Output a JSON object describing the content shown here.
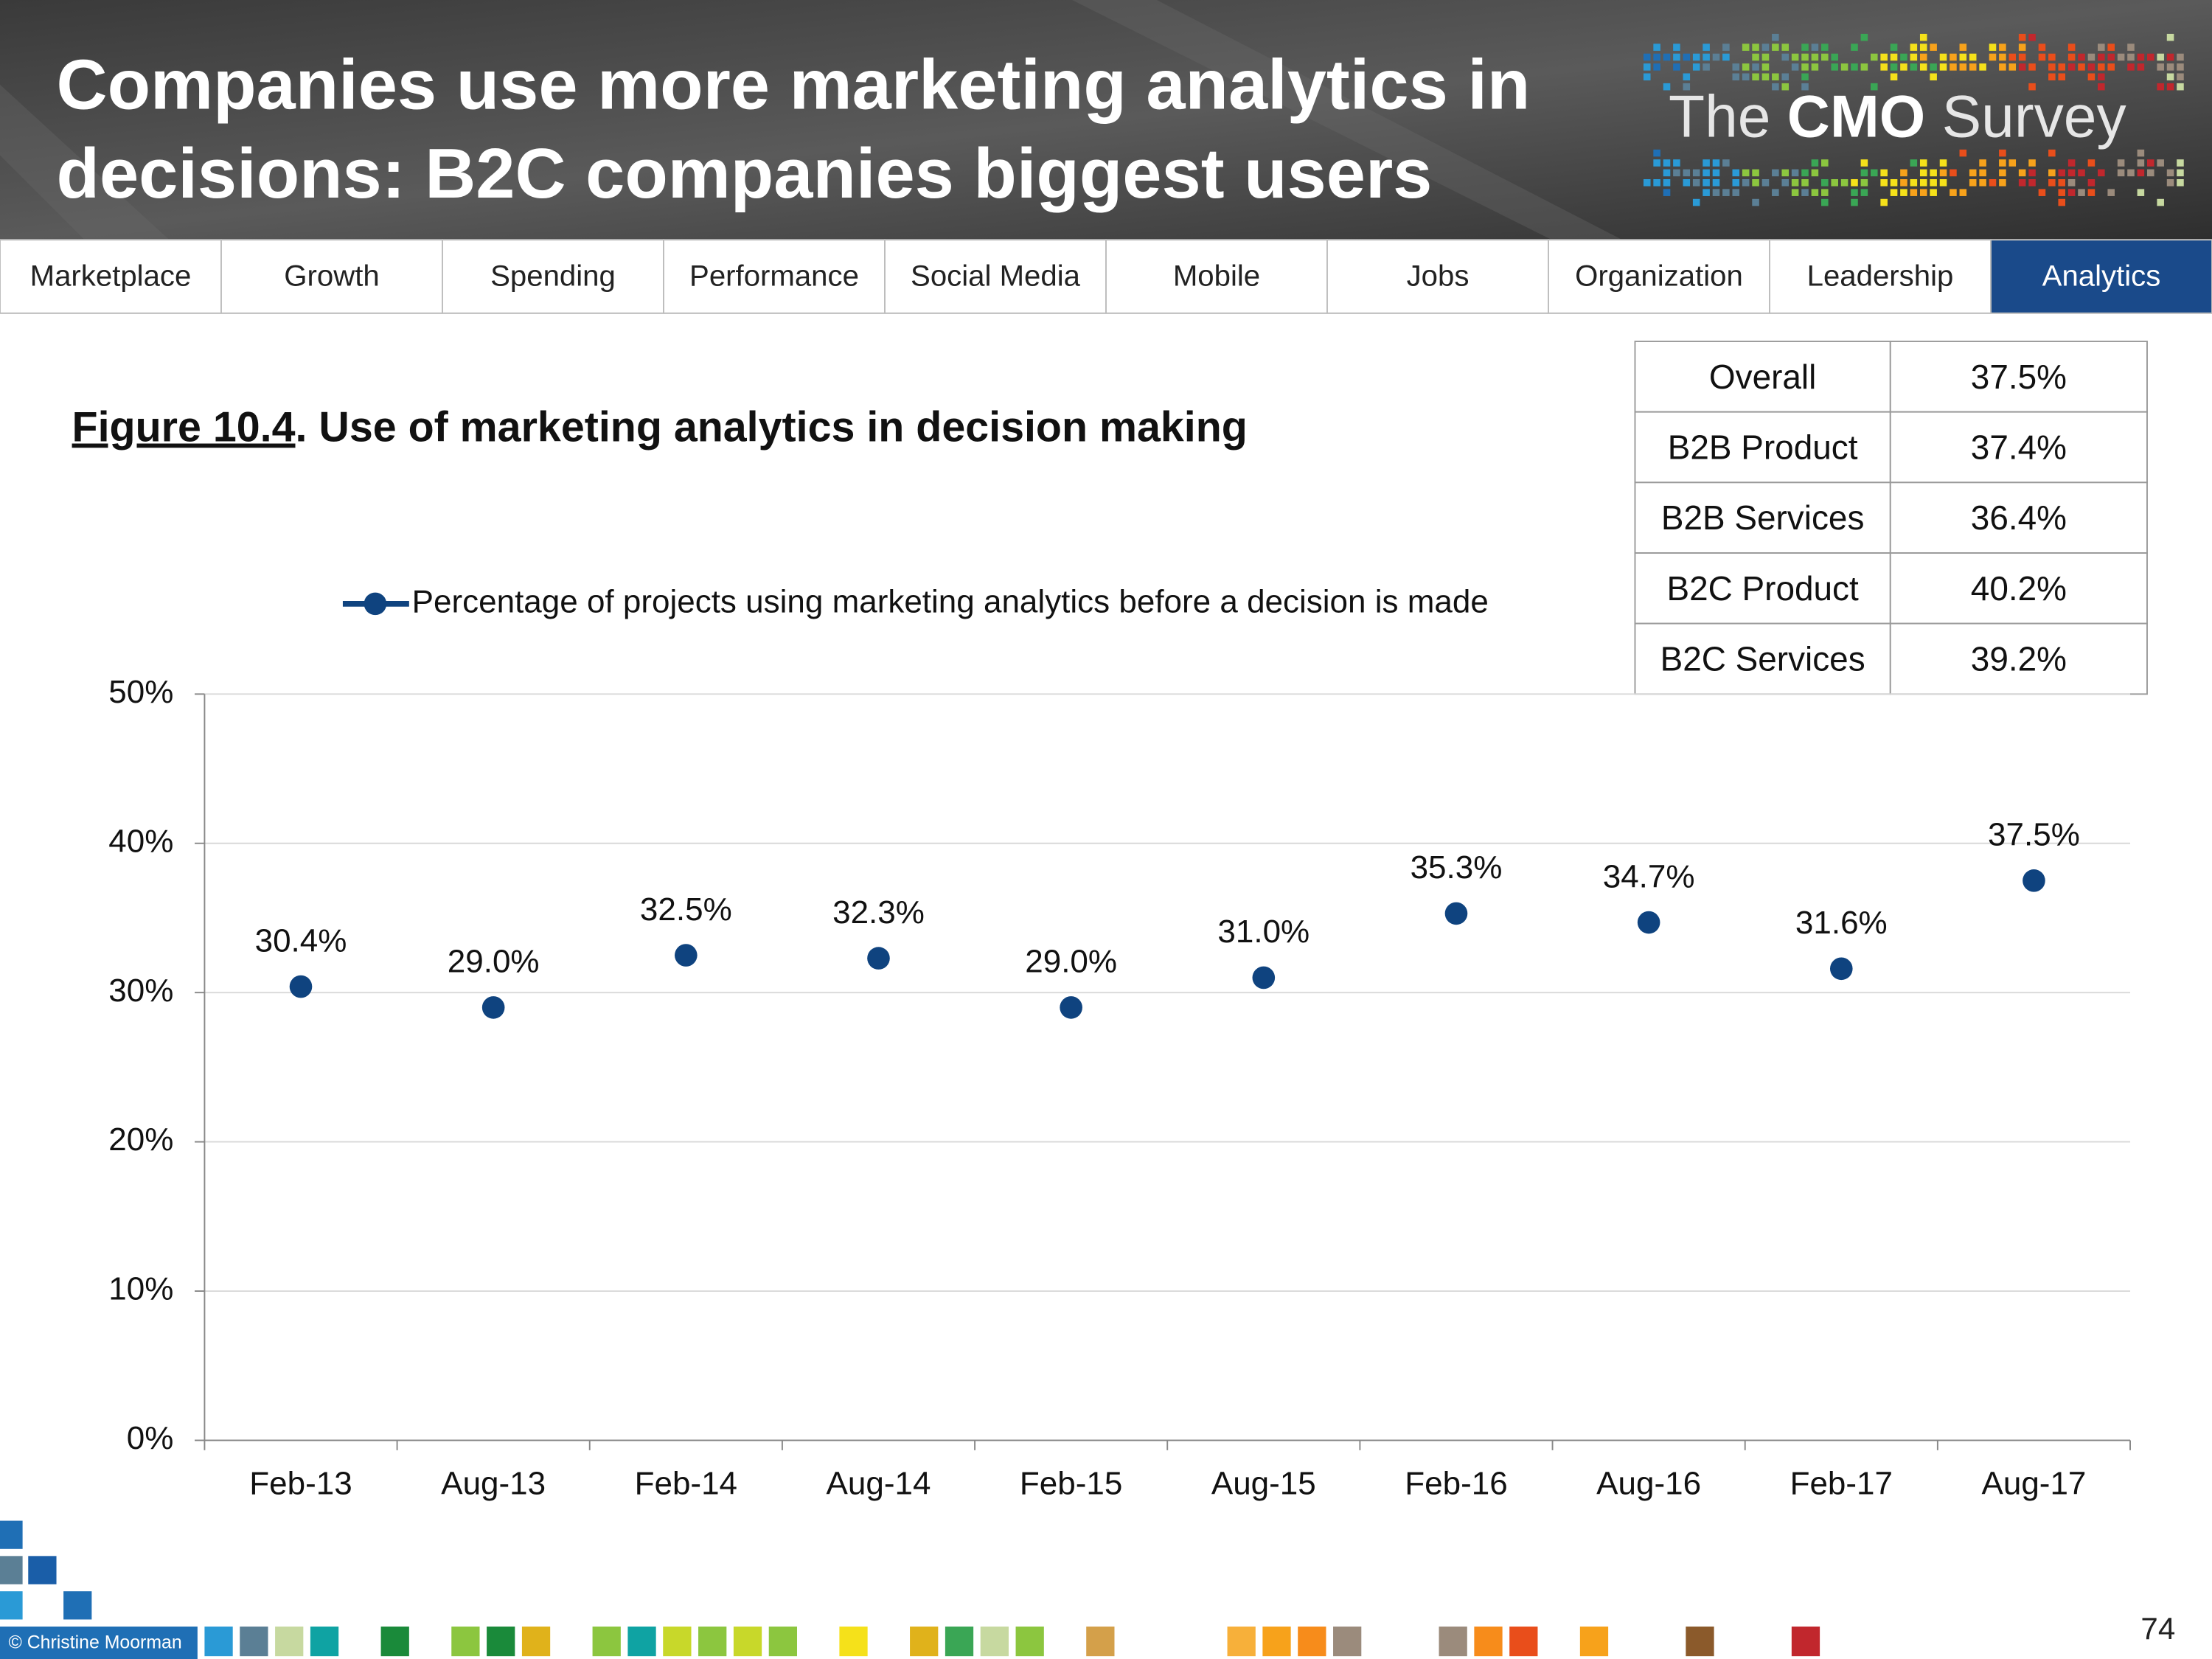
{
  "header": {
    "title_lines": [
      "Companies use more marketing analytics in",
      "decisions: B2C companies biggest users"
    ],
    "logo": {
      "prefix": "The",
      "brand": "CMO",
      "suffix": "Survey"
    }
  },
  "nav": {
    "tabs": [
      "Marketplace",
      "Growth",
      "Spending",
      "Performance",
      "Social Media",
      "Mobile",
      "Jobs",
      "Organization",
      "Leadership",
      "Analytics"
    ],
    "active": 9
  },
  "table": {
    "rows": [
      [
        "Overall",
        "37.5%"
      ],
      [
        "B2B Product",
        "37.4%"
      ],
      [
        "B2B Services",
        "36.4%"
      ],
      [
        "B2C Product",
        "40.2%"
      ],
      [
        "B2C Services",
        "39.2%"
      ]
    ]
  },
  "chart_data": {
    "type": "line",
    "figure_label": "Figure 10.4",
    "title": ". Use of marketing analytics in decision making",
    "categories": [
      "Feb-13",
      "Aug-13",
      "Feb-14",
      "Aug-14",
      "Feb-15",
      "Aug-15",
      "Feb-16",
      "Aug-16",
      "Feb-17",
      "Aug-17"
    ],
    "series": [
      {
        "name": "Percentage of projects using marketing analytics before a decision is made",
        "color": "#0f437f",
        "values": [
          30.4,
          29.0,
          32.5,
          32.3,
          29.0,
          31.0,
          35.3,
          34.7,
          31.6,
          37.5
        ],
        "value_labels": [
          "30.4%",
          "29.0%",
          "32.5%",
          "32.3%",
          "29.0%",
          "31.0%",
          "35.3%",
          "34.7%",
          "31.6%",
          "37.5%"
        ]
      }
    ],
    "ylim": [
      0,
      50
    ],
    "yticks": [
      {
        "value": 0,
        "label": "0%"
      },
      {
        "value": 10,
        "label": "10%"
      },
      {
        "value": 20,
        "label": "20%"
      },
      {
        "value": 30,
        "label": "30%"
      },
      {
        "value": 40,
        "label": "40%"
      },
      {
        "value": 50,
        "label": "50%"
      }
    ],
    "grid": true,
    "legend": "top"
  },
  "footer": {
    "copyright": "© Christine Moorman",
    "page_number": "74"
  }
}
